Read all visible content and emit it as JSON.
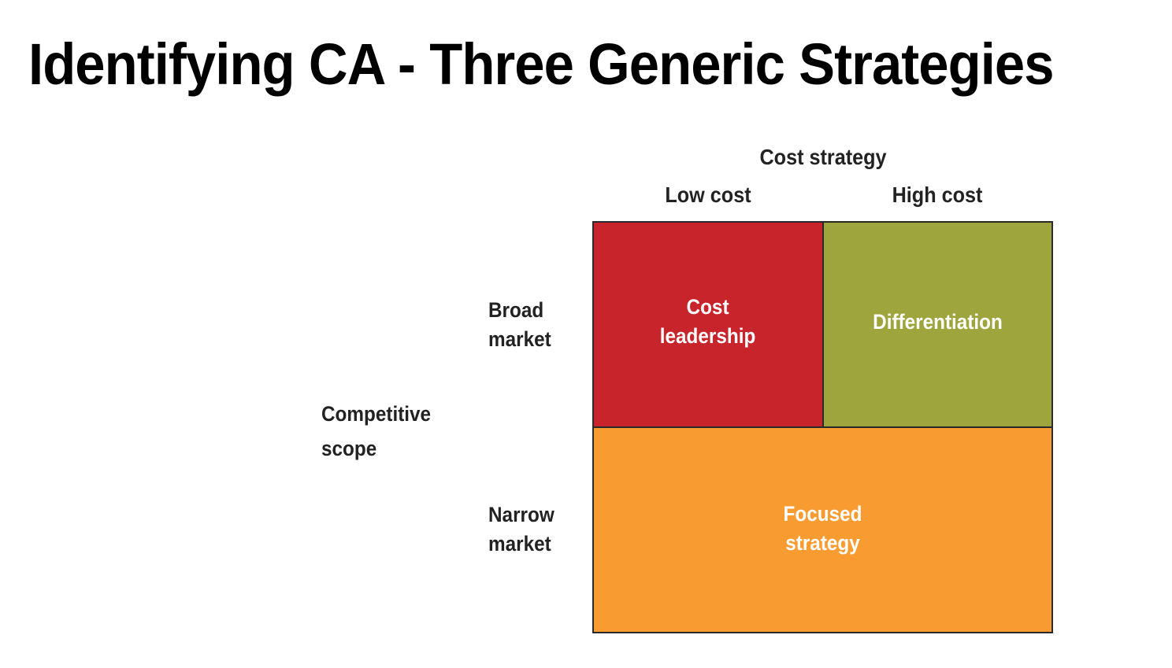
{
  "slide": {
    "title": "Identifying CA - Three Generic Strategies"
  },
  "diagram": {
    "column_axis_title": "Cost strategy",
    "columns": [
      "Low cost",
      "High cost"
    ],
    "row_axis_title": "Competitive\nscope",
    "rows": [
      "Broad\nmarket",
      "Narrow\nmarket"
    ],
    "cells": {
      "cost_leadership": "Cost\nleadership",
      "differentiation": "Differentiation",
      "focused_strategy": "Focused\nstrategy"
    },
    "colors": {
      "cost_leadership": "#c8242b",
      "differentiation": "#9ea53c",
      "focused_strategy": "#f89c32",
      "border": "#2a2a2a"
    }
  }
}
